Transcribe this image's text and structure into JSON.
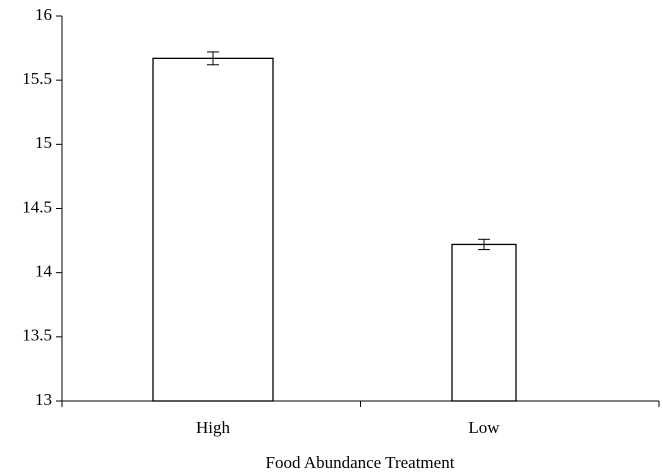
{
  "chart_data": {
    "type": "bar",
    "x_label": "Food Abundance Treatment",
    "categories": [
      "High",
      "Low"
    ],
    "values": [
      15.67,
      14.22
    ],
    "errors": [
      0.05,
      0.04
    ],
    "color": "#ffffff",
    "ylim": [
      13,
      16
    ],
    "yticks": [
      13,
      13.5,
      14,
      14.5,
      15,
      15.5,
      16
    ],
    "grid": false
  }
}
